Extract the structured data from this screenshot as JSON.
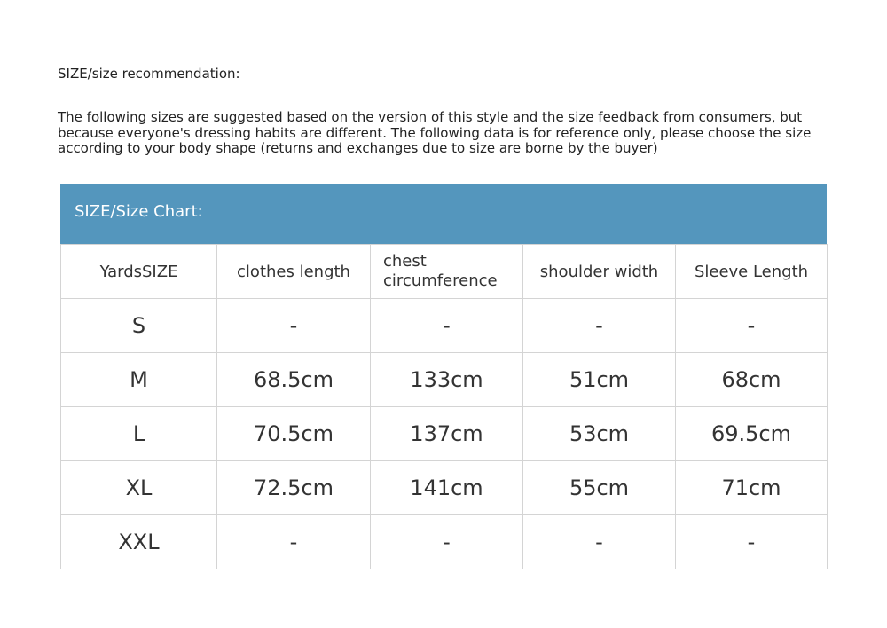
{
  "title": "SIZE/size recommendation:",
  "intro": "The following sizes are suggested based on the version of this style and the size feedback from consumers, but because everyone's dressing habits are different. The following data is for reference only, please choose the size according to your body shape (returns and exchanges due to size are borne by the buyer)",
  "chart_header": "SIZE/Size Chart:",
  "header_color": "#5496bd",
  "columns": [
    "YardsSIZE",
    "clothes length",
    "chest circumference",
    "shoulder width",
    "Sleeve Length"
  ],
  "rows": [
    [
      "S",
      "-",
      "-",
      "-",
      "-"
    ],
    [
      "M",
      "68.5cm",
      "133cm",
      "51cm",
      "68cm"
    ],
    [
      "L",
      "70.5cm",
      "137cm",
      "53cm",
      "69.5cm"
    ],
    [
      "XL",
      "72.5cm",
      "141cm",
      "55cm",
      "71cm"
    ],
    [
      "XXL",
      "-",
      "-",
      "-",
      "-"
    ]
  ]
}
